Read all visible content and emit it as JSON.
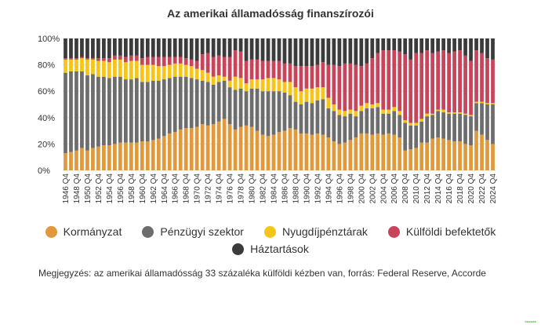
{
  "chart_data": {
    "type": "stacked_bar",
    "title": "Az amerikai államadósság finanszírozói",
    "ytick_labels": [
      "0%",
      "20%",
      "40%",
      "60%",
      "80%",
      "100%"
    ],
    "ylim": [
      0,
      100
    ],
    "categories": [
      "1946 Q4",
      "1947 Q4",
      "1948 Q4",
      "1949 Q4",
      "1950 Q4",
      "1951 Q4",
      "1952 Q4",
      "1953 Q4",
      "1954 Q4",
      "1955 Q4",
      "1956 Q4",
      "1957 Q4",
      "1958 Q4",
      "1959 Q4",
      "1960 Q4",
      "1961 Q4",
      "1962 Q4",
      "1963 Q4",
      "1964 Q4",
      "1965 Q4",
      "1966 Q4",
      "1967 Q4",
      "1968 Q4",
      "1969 Q4",
      "1970 Q4",
      "1971 Q4",
      "1972 Q4",
      "1973 Q4",
      "1974 Q4",
      "1975 Q4",
      "1976 Q4",
      "1977 Q4",
      "1978 Q4",
      "1979 Q4",
      "1980 Q4",
      "1981 Q4",
      "1982 Q4",
      "1983 Q4",
      "1984 Q4",
      "1985 Q4",
      "1986 Q4",
      "1987 Q4",
      "1988 Q4",
      "1989 Q4",
      "1990 Q4",
      "1991 Q4",
      "1992 Q4",
      "1993 Q4",
      "1994 Q4",
      "1995 Q4",
      "1996 Q4",
      "1997 Q4",
      "1998 Q4",
      "1999 Q4",
      "2000 Q4",
      "2001 Q4",
      "2002 Q4",
      "2003 Q4",
      "2004 Q4",
      "2005 Q4",
      "2006 Q4",
      "2007 Q4",
      "2008 Q4",
      "2009 Q4",
      "2010 Q4",
      "2011 Q4",
      "2012 Q4",
      "2013 Q4",
      "2014 Q4",
      "2015 Q4",
      "2016 Q4",
      "2017 Q4",
      "2018 Q4",
      "2019 Q4",
      "2020 Q4",
      "2021 Q4",
      "2022 Q4",
      "2023 Q4",
      "2024 Q4"
    ],
    "tick_labels": [
      "1946 Q4",
      "1948 Q4",
      "1950 Q4",
      "1952 Q4",
      "1954 Q4",
      "1956 Q4",
      "1958 Q4",
      "1960 Q4",
      "1962 Q4",
      "1964 Q4",
      "1966 Q4",
      "1968 Q4",
      "1970 Q4",
      "1972 Q4",
      "1974 Q4",
      "1976 Q4",
      "1978 Q4",
      "1980 Q4",
      "1982 Q4",
      "1984 Q4",
      "1986 Q4",
      "1988 Q4",
      "1990 Q4",
      "1992 Q4",
      "1994 Q4",
      "1996 Q4",
      "1998 Q4",
      "2000 Q4",
      "2002 Q4",
      "2004 Q4",
      "2006 Q4",
      "2008 Q4",
      "2010 Q4",
      "2012 Q4",
      "2014 Q4",
      "2016 Q4",
      "2018 Q4",
      "2020 Q4",
      "2022 Q4",
      "2024 Q4"
    ],
    "series": [
      {
        "name": "Kormányzat",
        "color": "#e09a3c",
        "values": [
          13,
          14,
          15,
          17,
          15,
          17,
          18,
          19,
          19,
          20,
          21,
          21,
          21,
          21,
          22,
          22,
          23,
          24,
          26,
          28,
          29,
          31,
          32,
          32,
          33,
          35,
          34,
          35,
          37,
          39,
          35,
          31,
          33,
          34,
          33,
          30,
          27,
          26,
          27,
          29,
          30,
          32,
          31,
          28,
          28,
          27,
          28,
          27,
          25,
          22,
          20,
          21,
          23,
          25,
          28,
          28,
          27,
          28,
          27,
          28,
          27,
          25,
          15,
          16,
          17,
          21,
          21,
          24,
          25,
          24,
          23,
          22,
          22,
          20,
          19,
          30,
          27,
          23,
          20
        ]
      },
      {
        "name": "Pénzügyi szektor",
        "color": "#6d6d6d",
        "values": [
          61,
          61,
          60,
          58,
          57,
          56,
          53,
          52,
          51,
          51,
          50,
          48,
          48,
          49,
          45,
          45,
          45,
          44,
          43,
          42,
          42,
          40,
          39,
          38,
          36,
          33,
          33,
          30,
          30,
          29,
          28,
          30,
          29,
          26,
          29,
          32,
          33,
          34,
          33,
          31,
          29,
          25,
          21,
          22,
          24,
          24,
          25,
          27,
          22,
          23,
          22,
          20,
          20,
          16,
          17,
          19,
          20,
          20,
          16,
          15,
          18,
          17,
          21,
          18,
          17,
          16,
          20,
          18,
          20,
          20,
          20,
          21,
          21,
          22,
          22,
          21,
          24,
          27,
          30
        ]
      },
      {
        "name": "Nyugdíjpénztárak",
        "color": "#f5c518",
        "values": [
          10,
          9,
          9,
          10,
          12,
          11,
          12,
          12,
          12,
          13,
          13,
          13,
          14,
          13,
          13,
          13,
          12,
          11,
          10,
          10,
          10,
          10,
          9,
          9,
          8,
          8,
          7,
          6,
          5,
          3,
          5,
          10,
          8,
          6,
          7,
          7,
          9,
          10,
          10,
          9,
          8,
          10,
          11,
          10,
          10,
          11,
          10,
          9,
          8,
          5,
          4,
          4,
          3,
          4,
          4,
          4,
          3,
          3,
          3,
          3,
          3,
          3,
          2,
          2,
          2,
          2,
          2,
          1,
          1,
          2,
          1,
          1,
          1,
          1,
          1,
          1,
          1,
          1,
          1
        ]
      },
      {
        "name": "Külföldi befektetők",
        "color": "#c8445a",
        "values": [
          1,
          1,
          1,
          1,
          1,
          1,
          2,
          2,
          3,
          3,
          3,
          4,
          4,
          4,
          5,
          6,
          6,
          7,
          7,
          6,
          5,
          5,
          5,
          5,
          6,
          12,
          15,
          15,
          15,
          15,
          18,
          20,
          20,
          17,
          15,
          15,
          14,
          13,
          13,
          14,
          14,
          14,
          16,
          19,
          17,
          17,
          17,
          19,
          25,
          30,
          33,
          36,
          35,
          35,
          30,
          30,
          35,
          38,
          45,
          45,
          43,
          45,
          50,
          48,
          53,
          50,
          48,
          46,
          44,
          45,
          45,
          46,
          47,
          44,
          41,
          39,
          37,
          34,
          33
        ]
      },
      {
        "name": "Háztartások",
        "color": "#3b3b3b",
        "values": [
          15,
          15,
          15,
          14,
          15,
          15,
          15,
          15,
          15,
          13,
          13,
          14,
          13,
          13,
          15,
          14,
          14,
          14,
          14,
          14,
          14,
          14,
          15,
          16,
          17,
          12,
          11,
          14,
          13,
          14,
          14,
          9,
          10,
          17,
          16,
          16,
          17,
          17,
          17,
          17,
          19,
          19,
          21,
          21,
          21,
          21,
          20,
          18,
          20,
          20,
          21,
          19,
          19,
          20,
          21,
          19,
          15,
          11,
          9,
          9,
          9,
          10,
          12,
          16,
          11,
          11,
          9,
          11,
          10,
          9,
          11,
          10,
          9,
          13,
          17,
          9,
          11,
          15,
          16
        ]
      }
    ]
  },
  "legend": {
    "row1": [
      "Kormányzat",
      "Pénzügyi szektor",
      "Nyugdíjpénztárak",
      "Külföldi befektetők"
    ],
    "row2": [
      "Háztartások"
    ]
  },
  "note": "Megjegyzés: az amerikai államadósság 33 százaléka külföldi kézben van, forrás: Federal Reserve, Accorde"
}
